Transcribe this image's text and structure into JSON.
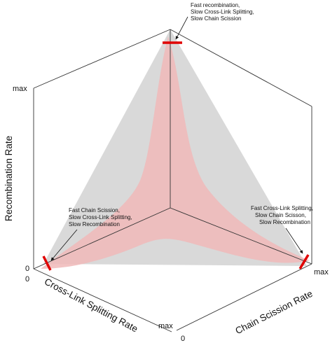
{
  "axes": {
    "recombination": {
      "title": "Recombination Rate",
      "min_label": "0",
      "max_label": "max"
    },
    "cross_link": {
      "title": "Cross-Link Splitting Rate",
      "min_label": "0",
      "max_label": "max"
    },
    "chain_scission": {
      "title": "Chain Scission Rate",
      "min_label": "0",
      "max_label": "max"
    }
  },
  "annotations": {
    "top": [
      "Fast recombination,",
      "Slow Cross-Link Splitting,",
      "Slow Chain Scission"
    ],
    "left": [
      "Fast Chain Scission,",
      "Slow Cross-Link Splitting,",
      "Slow Recombination"
    ],
    "right": [
      "Fast Cross-Link Splitting,",
      "Slow Chain Scisson,",
      "Slow Recombination"
    ]
  },
  "colors": {
    "surface": "#d9d9d9",
    "band": "#f0b8b8",
    "marker": "#e00000",
    "lines": "#333333"
  }
}
